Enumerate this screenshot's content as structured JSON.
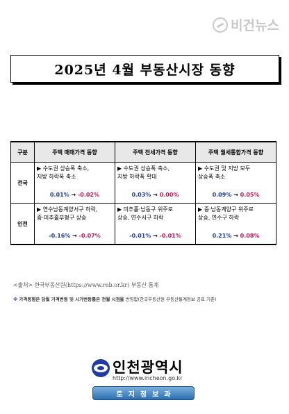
{
  "watermark": "비건뉴스",
  "title": "2025년 4월 부동산시장 동향",
  "table": {
    "headers": [
      "구분",
      "주택 매매가격 동향",
      "주택 전세가격 동향",
      "주택 월세통합가격 동향"
    ],
    "rows": [
      {
        "label": "전국",
        "cells": [
          {
            "line1": "▶ 수도권 상승폭 축소,",
            "line2": "지방 하락폭 축소",
            "from": "0.01%",
            "to": "-0.02%"
          },
          {
            "line1": "▶ 수도권 상승폭 축소,",
            "line2": "지방 하락폭 확대",
            "from": "0.03%",
            "to": "0.00%"
          },
          {
            "line1": "▶ 수도권 및 지방 모두",
            "line2": "상승폭 축소",
            "from": "0.09%",
            "to": "0.05%"
          }
        ]
      },
      {
        "label": "인천",
        "cells": [
          {
            "line1": "▶ 연수남동계양서구 하락,",
            "line2": "중·미추홀부평구 상승",
            "from": "-0.16%",
            "to": "-0.07%"
          },
          {
            "line1": "▶ 미추홀·남동구 위주로",
            "line2": "상승, 연수서구 하락",
            "from": "-0.01%",
            "to": "-0.01%"
          },
          {
            "line1": "▶ 중·남동계양구 위주로",
            "line2": "상승, 연수구 하락",
            "from": "0.21%",
            "to": "0.08%"
          }
        ]
      }
    ],
    "arrow": "→"
  },
  "source": "<출처> 한국부동산원(https://www.reb.or.kr) 부동산 통계",
  "note": {
    "mark": "※",
    "bold": "가격동향은 당월 가격변동 및 시가변동률은 전월 시점을",
    "rest": " 반영함(한국부동산원 부동산통계정보 공표 기준)"
  },
  "logo": {
    "name": "인천광역시",
    "url": "http://www.incheon.go.kr"
  },
  "badge": "토지정보과",
  "colors": {
    "from": "#1f3c9e",
    "to": "#c8155a",
    "badge": "#2d6fb0"
  }
}
